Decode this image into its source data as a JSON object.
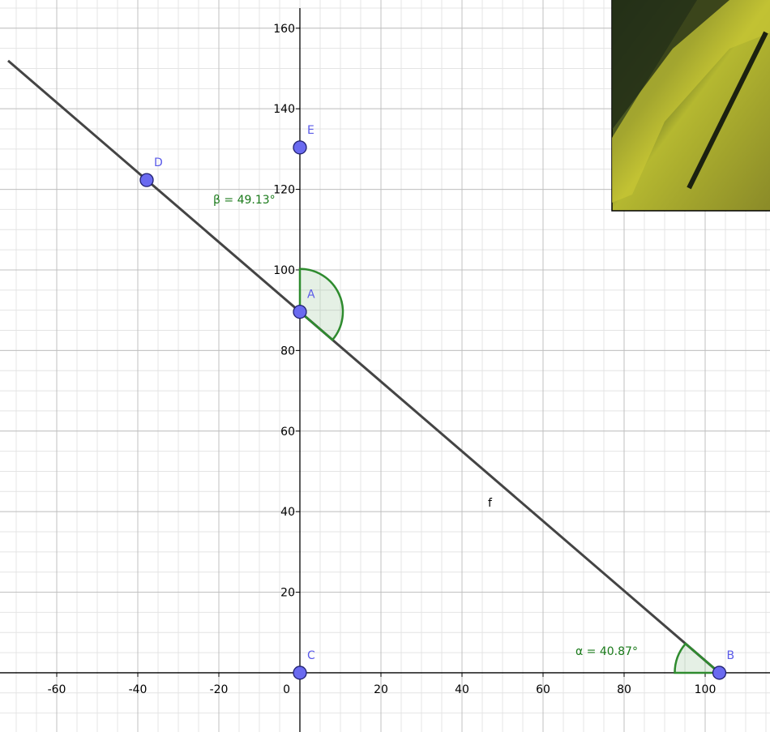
{
  "axes": {
    "xlim": [
      -74,
      116
    ],
    "ylim": [
      -14.7,
      167
    ],
    "xticks": [
      -60,
      -40,
      -20,
      0,
      20,
      40,
      60,
      80,
      100
    ],
    "yticks": [
      20,
      40,
      60,
      80,
      100,
      120,
      140,
      160
    ],
    "grid_minor_step": 5
  },
  "points": [
    {
      "name": "A",
      "x": 0,
      "y": 89.6
    },
    {
      "name": "B",
      "x": 103.5,
      "y": 0
    },
    {
      "name": "C",
      "x": 0,
      "y": 0
    },
    {
      "name": "D",
      "x": -37.8,
      "y": 122.3
    },
    {
      "name": "E",
      "x": 0,
      "y": 130.4
    }
  ],
  "line": {
    "label": "f"
  },
  "angles": [
    {
      "label": "α = 40.87°"
    },
    {
      "label": "β = 49.13°"
    }
  ]
}
